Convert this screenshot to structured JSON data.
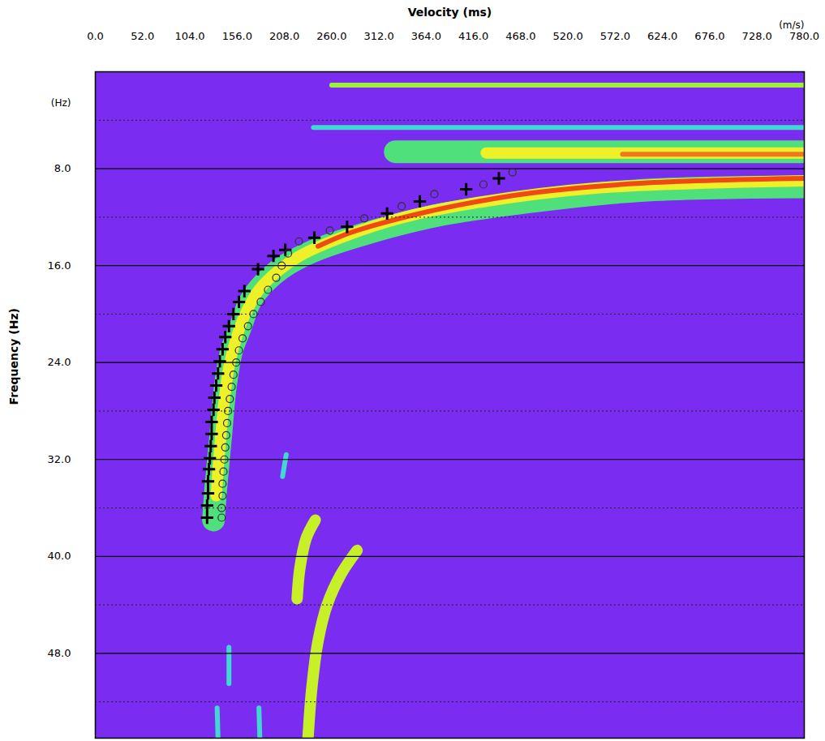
{
  "chart_data": {
    "type": "dispersion",
    "title": "Velocity (ms)",
    "x_label": "Velocity (ms)",
    "y_label": "Frequency (Hz)",
    "xlim": [
      0,
      780
    ],
    "ylim": [
      0,
      55
    ],
    "xticks": [
      {
        "value": 0,
        "label": "0.0"
      },
      {
        "value": 52,
        "label": "52.0"
      },
      {
        "value": 104,
        "label": "104.0"
      },
      {
        "value": 156,
        "label": "156.0"
      },
      {
        "value": 208,
        "label": "208.0"
      },
      {
        "value": 260,
        "label": "260.0"
      },
      {
        "value": 312,
        "label": "312.0"
      },
      {
        "value": 364,
        "label": "364.0"
      },
      {
        "value": 416,
        "label": "416.0"
      },
      {
        "value": 468,
        "label": "468.0"
      },
      {
        "value": 520,
        "label": "520.0"
      },
      {
        "value": 572,
        "label": "572.0"
      },
      {
        "value": 624,
        "label": "624.0"
      },
      {
        "value": 676,
        "label": "676.0"
      },
      {
        "value": 728,
        "label": "728.0"
      },
      {
        "value": 780,
        "label": "780.0"
      }
    ],
    "yticks": [
      {
        "value": 8,
        "label": "8.0"
      },
      {
        "value": 16,
        "label": "16.0"
      },
      {
        "value": 24,
        "label": "24.0"
      },
      {
        "value": 32,
        "label": "32.0"
      },
      {
        "value": 40,
        "label": "40.0"
      },
      {
        "value": 48,
        "label": "48.0"
      }
    ],
    "grid": true,
    "background": "#7a2cf0",
    "annotations": [
      {
        "text": "(m/s)",
        "x": 780
      },
      {
        "text": "(Hz)",
        "y": 2.6
      }
    ],
    "series": [
      {
        "type": "line",
        "color": "#4fe07c",
        "line_style": "wide",
        "x": [
          780,
          600,
          470,
          380,
          300,
          240,
          205,
          185,
          170,
          160,
          150,
          143,
          138,
          133,
          130
        ],
        "values": [
          9.5,
          9.8,
          10.8,
          11.8,
          13.3,
          14.8,
          16.2,
          17.5,
          19,
          21,
          23,
          26,
          30,
          34,
          37
        ]
      },
      {
        "type": "line",
        "color": "#eef028",
        "line_style": "medium",
        "x": [
          780,
          550,
          420,
          340,
          270,
          225,
          200,
          180,
          165,
          155,
          148,
          142,
          137,
          133
        ],
        "values": [
          9.0,
          9.6,
          10.8,
          12.0,
          13.7,
          15.2,
          16.5,
          18.0,
          20.0,
          22.0,
          24.0,
          27.0,
          31.0,
          35.0
        ]
      },
      {
        "type": "line",
        "color": "#f04a14",
        "line_style": "narrow",
        "x": [
          780,
          600,
          480,
          400,
          330,
          280,
          245
        ],
        "values": [
          8.8,
          9.2,
          10.0,
          11.0,
          12.2,
          13.3,
          14.4
        ]
      },
      {
        "type": "line",
        "color": "#9cf03c",
        "line_style": "narrow",
        "x": [
          260,
          780
        ],
        "values": [
          1.1,
          1.1
        ]
      },
      {
        "type": "line",
        "color": "#40d8d0",
        "line_style": "narrow",
        "x": [
          240,
          780
        ],
        "values": [
          4.6,
          4.6
        ]
      },
      {
        "type": "line",
        "color": "#4fe07c",
        "line_style": "wide",
        "x": [
          330,
          780
        ],
        "values": [
          6.6,
          6.6
        ]
      },
      {
        "type": "line",
        "color": "#eef028",
        "line_style": "medium",
        "x": [
          430,
          780
        ],
        "values": [
          6.7,
          6.7
        ]
      },
      {
        "type": "line",
        "color": "#f07820",
        "line_style": "narrow",
        "x": [
          580,
          780
        ],
        "values": [
          6.8,
          6.8
        ]
      },
      {
        "type": "line",
        "color": "#40d8d0",
        "line_style": "narrow",
        "x": [
          210,
          206
        ],
        "values": [
          31.6,
          33.4
        ]
      },
      {
        "type": "line",
        "color": "#c8f028",
        "line_style": "medium",
        "x": [
          242,
          232,
          225,
          222
        ],
        "values": [
          37.0,
          38.5,
          41.0,
          43.5
        ]
      },
      {
        "type": "line",
        "color": "#c8f028",
        "line_style": "medium",
        "x": [
          288,
          270,
          255,
          245,
          238,
          234
        ],
        "values": [
          39.5,
          41.5,
          44,
          47,
          51,
          55
        ]
      },
      {
        "type": "line",
        "color": "#40d8d0",
        "line_style": "narrow",
        "x": [
          147,
          147
        ],
        "values": [
          47.5,
          50.5
        ]
      },
      {
        "type": "line",
        "color": "#40d8d0",
        "line_style": "narrow",
        "x": [
          180,
          181
        ],
        "values": [
          52.5,
          55
        ]
      },
      {
        "type": "line",
        "color": "#40d8d0",
        "line_style": "narrow",
        "x": [
          134,
          135
        ],
        "values": [
          52.5,
          55
        ]
      },
      {
        "type": "scatter",
        "color": "#000000",
        "marker": "plus",
        "x": [
          444,
          408,
          357,
          321,
          277,
          241,
          209,
          196,
          179,
          164,
          158,
          152,
          147,
          143,
          140,
          137,
          135,
          133,
          131,
          130,
          128,
          128,
          127,
          126,
          125,
          124,
          124,
          123,
          123
        ],
        "values": [
          8.8,
          9.7,
          10.7,
          11.7,
          12.8,
          13.7,
          14.7,
          15.2,
          16.3,
          18.1,
          19.0,
          20.0,
          21.0,
          21.9,
          22.9,
          23.9,
          24.9,
          25.9,
          26.9,
          27.9,
          28.9,
          29.9,
          30.9,
          31.9,
          32.8,
          33.8,
          34.8,
          35.8,
          36.8
        ]
      },
      {
        "type": "scatter",
        "color": "#303030",
        "marker": "circle",
        "x": [
          459,
          427,
          373,
          337,
          296,
          258,
          224,
          212,
          205,
          199,
          190,
          182,
          174,
          168,
          162,
          158,
          155,
          152,
          150,
          148,
          146,
          145,
          144,
          143,
          142,
          141,
          140,
          140,
          139,
          139
        ],
        "values": [
          8.3,
          9.3,
          10.1,
          11.1,
          12.1,
          13.1,
          14.0,
          15.0,
          16.0,
          17.0,
          18.0,
          19.0,
          20.0,
          21.0,
          22.0,
          23.0,
          24.0,
          25.0,
          26.0,
          27.0,
          28.0,
          29.0,
          30.0,
          31.0,
          32.0,
          33.0,
          34.0,
          35.0,
          36.0,
          36.8
        ]
      }
    ]
  }
}
